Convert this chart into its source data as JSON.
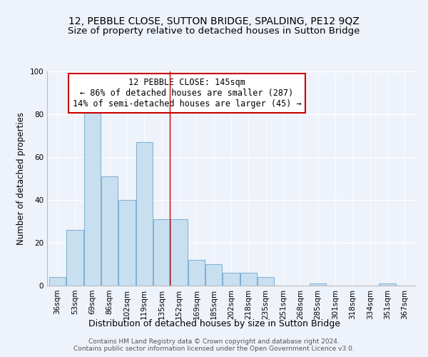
{
  "title": "12, PEBBLE CLOSE, SUTTON BRIDGE, SPALDING, PE12 9QZ",
  "subtitle": "Size of property relative to detached houses in Sutton Bridge",
  "xlabel": "Distribution of detached houses by size in Sutton Bridge",
  "ylabel": "Number of detached properties",
  "bin_labels": [
    "36sqm",
    "53sqm",
    "69sqm",
    "86sqm",
    "102sqm",
    "119sqm",
    "135sqm",
    "152sqm",
    "169sqm",
    "185sqm",
    "202sqm",
    "218sqm",
    "235sqm",
    "251sqm",
    "268sqm",
    "285sqm",
    "301sqm",
    "318sqm",
    "334sqm",
    "351sqm",
    "367sqm"
  ],
  "bar_heights": [
    4,
    26,
    84,
    51,
    40,
    67,
    31,
    31,
    12,
    10,
    6,
    6,
    4,
    0,
    0,
    1,
    0,
    0,
    0,
    1,
    0
  ],
  "bar_color": "#c8dff0",
  "bar_edge_color": "#7bafd4",
  "ylim": [
    0,
    100
  ],
  "yticks": [
    0,
    20,
    40,
    60,
    80,
    100
  ],
  "annotation_box_text": "12 PEBBLE CLOSE: 145sqm\n← 86% of detached houses are smaller (287)\n14% of semi-detached houses are larger (45) →",
  "annotation_box_color": "#ffffff",
  "annotation_box_edge_color": "#cc0000",
  "vline_color": "#cc0000",
  "vline_x": 6.47,
  "footer_line1": "Contains HM Land Registry data © Crown copyright and database right 2024.",
  "footer_line2": "Contains public sector information licensed under the Open Government Licence v3.0.",
  "background_color": "#eef2fa",
  "grid_color": "#ffffff",
  "title_fontsize": 10,
  "subtitle_fontsize": 9.5,
  "ylabel_fontsize": 8.5,
  "xlabel_fontsize": 9,
  "tick_fontsize": 7.5,
  "footer_fontsize": 6.5,
  "annotation_fontsize": 8.5
}
